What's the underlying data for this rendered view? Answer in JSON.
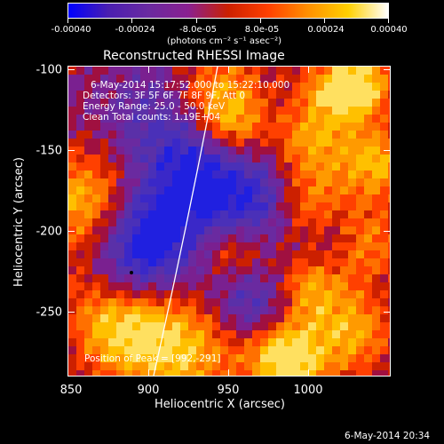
{
  "colorbar": {
    "tick_labels": [
      "-0.00040",
      "-0.00024",
      "-8.0e-05",
      "8.0e-05",
      "0.00024",
      "0.00040"
    ],
    "unit_label": "(photons cm⁻² s⁻¹ asec⁻²)",
    "colors": [
      "#0000ff",
      "#4a1fb0",
      "#6a2aa0",
      "#8a2090",
      "#cc2000",
      "#ff4000",
      "#ff9000",
      "#ffd000",
      "#ffffff"
    ]
  },
  "plot": {
    "title": "Reconstructed RHESSI Image",
    "x_axis_label": "Heliocentric X (arcsec)",
    "y_axis_label": "Heliocentric Y (arcsec)",
    "x_ticks": [
      "850",
      "900",
      "950",
      "1000"
    ],
    "y_ticks": [
      "-100",
      "-150",
      "-200",
      "-250"
    ],
    "xlim": [
      850,
      1040
    ],
    "ylim": [
      -290,
      -98
    ]
  },
  "annotations": {
    "time_range": "6-May-2014 15:17:52.000 to 15:22:10.000",
    "detectors": "Detectors: 3F 5F 6F 7F 8F 9F, Att 0",
    "energy_range": "Energy Range: 25.0 - 50.0 keV",
    "algorithm": "Clean    Total counts: 1.19E+04",
    "peak_position": "Position of Peak = [992,-291]"
  },
  "footer": {
    "timestamp": "6-May-2014 20:34"
  }
}
